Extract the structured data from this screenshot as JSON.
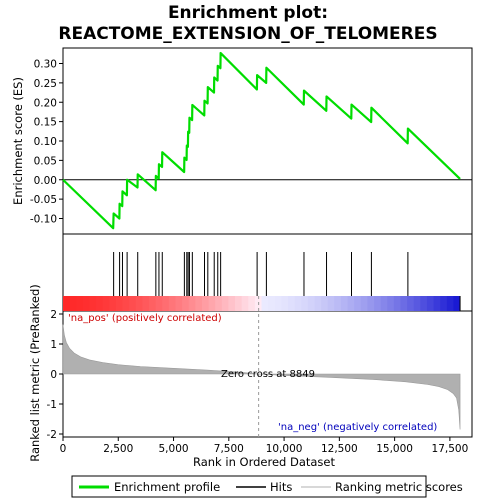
{
  "chart_data": {
    "type": "line",
    "title_line1": "Enrichment plot:",
    "title_line2": "REACTOME_EXTENSION_OF_TELOMERES",
    "xlabel": "Rank in Ordered Dataset",
    "ylabel_top": "Enrichment score (ES)",
    "ylabel_bottom": "Ranked list metric (PreRanked)",
    "xlim": [
      0,
      18500
    ],
    "x_ticks": [
      0,
      2500,
      5000,
      7500,
      10000,
      12500,
      15000,
      17500
    ],
    "x_tick_labels": [
      "0",
      "2,500",
      "5,000",
      "7,500",
      "10,000",
      "12,500",
      "15,000",
      "17,500"
    ],
    "es_ylim": [
      -0.14,
      0.34
    ],
    "es_ticks": [
      -0.1,
      -0.05,
      0.0,
      0.05,
      0.1,
      0.15,
      0.2,
      0.25,
      0.3
    ],
    "es_tick_labels": [
      "-0.10",
      "-0.05",
      "0.00",
      "0.05",
      "0.10",
      "0.15",
      "0.20",
      "0.25",
      "0.30"
    ],
    "metric_ylim": [
      -2.1,
      2.1
    ],
    "metric_ticks": [
      -2,
      -1,
      0,
      1,
      2
    ],
    "metric_tick_labels": [
      "-2",
      "-1",
      "0",
      "1",
      "2"
    ],
    "n_genes": 17960,
    "hits": [
      2290,
      2560,
      2690,
      2900,
      3380,
      4200,
      4340,
      4490,
      5490,
      5600,
      5660,
      5720,
      5850,
      6400,
      6550,
      6840,
      7000,
      7130,
      8780,
      9200,
      10900,
      11920,
      13050,
      13950,
      15600
    ],
    "enrichment_profile": {
      "x": [
        0,
        2270,
        2290,
        2550,
        2560,
        2680,
        2690,
        2890,
        2900,
        3370,
        3380,
        4190,
        4200,
        4330,
        4340,
        4480,
        4490,
        5480,
        5490,
        5590,
        5600,
        5650,
        5660,
        5710,
        5720,
        5840,
        5850,
        6390,
        6400,
        6540,
        6550,
        6830,
        6840,
        6990,
        7000,
        7120,
        7130,
        8770,
        8780,
        9190,
        9200,
        10890,
        10900,
        11910,
        11920,
        13040,
        13050,
        13940,
        13950,
        15590,
        15600,
        17960
      ],
      "es": [
        0.0,
        -0.125,
        -0.087,
        -0.1,
        -0.062,
        -0.068,
        -0.03,
        -0.04,
        0.0,
        -0.02,
        0.014,
        -0.027,
        0.01,
        0.003,
        0.04,
        0.033,
        0.071,
        0.02,
        0.057,
        0.051,
        0.088,
        0.085,
        0.124,
        0.121,
        0.16,
        0.154,
        0.193,
        0.166,
        0.204,
        0.197,
        0.239,
        0.225,
        0.264,
        0.256,
        0.294,
        0.288,
        0.327,
        0.233,
        0.27,
        0.25,
        0.289,
        0.194,
        0.23,
        0.178,
        0.215,
        0.158,
        0.194,
        0.149,
        0.186,
        0.094,
        0.132,
        0.002
      ]
    },
    "metric_scores": {
      "x": [
        0,
        60,
        150,
        300,
        500,
        800,
        1200,
        1800,
        2500,
        3500,
        5000,
        6500,
        8000,
        8849,
        10000,
        12000,
        14000,
        15500,
        16500,
        17000,
        17400,
        17650,
        17800,
        17900,
        17960
      ],
      "y": [
        1.65,
        1.3,
        1.05,
        0.85,
        0.7,
        0.57,
        0.47,
        0.38,
        0.31,
        0.25,
        0.19,
        0.13,
        0.06,
        0.0,
        -0.05,
        -0.11,
        -0.18,
        -0.26,
        -0.35,
        -0.42,
        -0.52,
        -0.65,
        -0.8,
        -1.2,
        -1.85
      ]
    },
    "zero_cross_label": "Zero cross at 8849",
    "zero_cross": 8849,
    "pos_label": "'na_pos' (positively correlated)",
    "neg_label": "'na_neg' (negatively correlated)",
    "colors": {
      "profile": "#00dd00",
      "hit": "#000000",
      "metric_fill": "#b0b0b0",
      "pos": "#ff0000",
      "neg": "#0000ff"
    },
    "legend": [
      {
        "label": "Enrichment profile",
        "kind": "profile"
      },
      {
        "label": "Hits",
        "kind": "hit"
      },
      {
        "label": "Ranking metric scores",
        "kind": "metric"
      }
    ]
  }
}
